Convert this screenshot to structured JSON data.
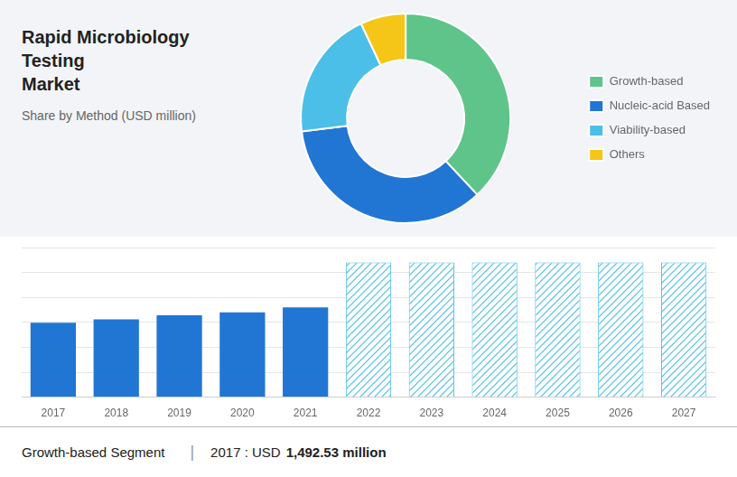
{
  "chart_data": [
    {
      "type": "doughnut",
      "title": "Rapid Microbiology Testing\nMarket",
      "subtitle": "Share by Method (USD million)",
      "categories": [
        "Growth-based",
        "Nucleic-acid Based",
        "Viability-based",
        "Others"
      ],
      "values": [
        38,
        35,
        20,
        7
      ],
      "colors": [
        "#5ec48a",
        "#2176d4",
        "#4bbfe8",
        "#f5c518"
      ],
      "legend": "right"
    },
    {
      "type": "bar",
      "categories": [
        "2017",
        "2018",
        "2019",
        "2020",
        "2021",
        "2022",
        "2023",
        "2024",
        "2025",
        "2026",
        "2027"
      ],
      "series": [
        {
          "color": "#2176d4",
          "values": [
            1492,
            1560,
            1640,
            1700,
            1800,
            null,
            null,
            null,
            null,
            null,
            null
          ]
        },
        {
          "color": "#4bbfe8",
          "values": [
            null,
            null,
            null,
            null,
            null,
            2700,
            2700,
            2700,
            2700,
            2700,
            2700
          ]
        }
      ],
      "ylim": [
        0,
        3000
      ],
      "yticks": [
        0,
        500,
        1000,
        1500,
        2000,
        2500,
        3000
      ],
      "grid": true,
      "tick_labels": "x",
      "annotations": [
        "Growth-based Segment",
        "|",
        "2017 : USD",
        "1,492.53 million"
      ]
    }
  ]
}
